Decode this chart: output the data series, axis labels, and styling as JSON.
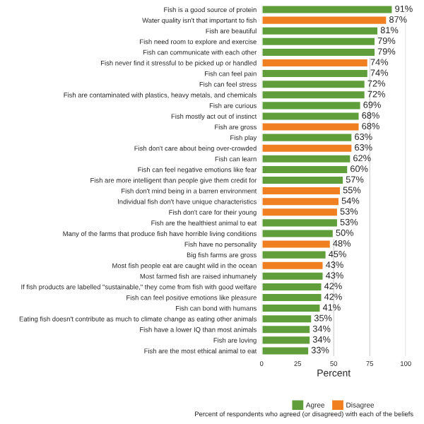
{
  "chart_data": {
    "type": "bar",
    "orientation": "horizontal",
    "categories": [
      "Fish is a good source of protein",
      "Water quality isn't that important to fish",
      "Fish are beautiful",
      "Fish need room to explore and exercise",
      "Fish can communicate with each other",
      "Fish never find it stressful to be picked up or handled",
      "Fish can feel pain",
      "Fish can feel stress",
      "Fish are contaminated with plastics, heavy metals, and chemicals",
      "Fish are curious",
      "Fish mostly act out of instinct",
      "Fish are gross",
      "Fish play",
      "Fish don't care about being over-crowded",
      "Fish can learn",
      "Fish can feel negative emotions like fear",
      "Fish are more intelligent than people give them credit for",
      "Fish don't mind being in a barren environment",
      "Individual fish don't have unique characteristics",
      "Fish don't care for their young",
      "Fish are the healthiest animal to eat",
      "Many of the farms that produce fish have horrible living conditions",
      "Fish have no personality",
      "Big fish farms are gross",
      "Most fish people eat are caught wild in the ocean",
      "Most farmed fish are raised inhumanely",
      "If fish products are labelled \"sustainable,\" they come from fish with good welfare",
      "Fish can feel positive emotions like pleasure",
      "Fish can bond with humans",
      "Eating fish doesn't contribute as much to climate change as eating other animals",
      "Fish have a lower IQ than most animals",
      "Fish are loving",
      "Fish are the most ethical animal to eat"
    ],
    "series": [
      {
        "name": "Agree",
        "color": "#5f9e3a",
        "values": [
          91,
          null,
          81,
          79,
          79,
          null,
          74,
          72,
          72,
          69,
          68,
          null,
          63,
          null,
          62,
          60,
          57,
          null,
          null,
          null,
          53,
          50,
          null,
          45,
          null,
          43,
          42,
          42,
          41,
          35,
          34,
          34,
          33
        ],
        "value_labels": [
          "91%",
          null,
          "81%",
          "79%",
          "79%",
          null,
          "74%",
          "72%",
          "72%",
          "69%",
          "68%",
          null,
          "63%",
          null,
          "62%",
          "60%",
          "57%",
          null,
          null,
          null,
          "53%",
          "50%",
          null,
          "45%",
          null,
          "43%",
          "42%",
          "42%",
          "41%",
          "35%",
          "34%",
          "34%",
          "33%"
        ]
      },
      {
        "name": "Disagree",
        "color": "#f07f22",
        "values": [
          null,
          87,
          null,
          null,
          null,
          74,
          null,
          null,
          null,
          null,
          null,
          68,
          null,
          63,
          null,
          null,
          null,
          55,
          54,
          53,
          null,
          null,
          48,
          null,
          43,
          null,
          null,
          null,
          null,
          null,
          null,
          null,
          null
        ],
        "value_labels": [
          null,
          "87%",
          null,
          null,
          null,
          "74%",
          null,
          null,
          null,
          null,
          null,
          "68%",
          null,
          "63%",
          null,
          null,
          null,
          "55%",
          "54%",
          "53%",
          null,
          null,
          "48%",
          null,
          "43%",
          null,
          null,
          null,
          null,
          null,
          null,
          null,
          null
        ]
      }
    ],
    "xlim": [
      0,
      100
    ],
    "xticks": [
      0,
      25,
      50,
      75,
      100
    ],
    "grid": "x",
    "xlabel": "Percent",
    "legend": "bottom",
    "annotations": [
      "Percent of respondents who agreed (or disagreed) with each of the beliefs"
    ]
  }
}
